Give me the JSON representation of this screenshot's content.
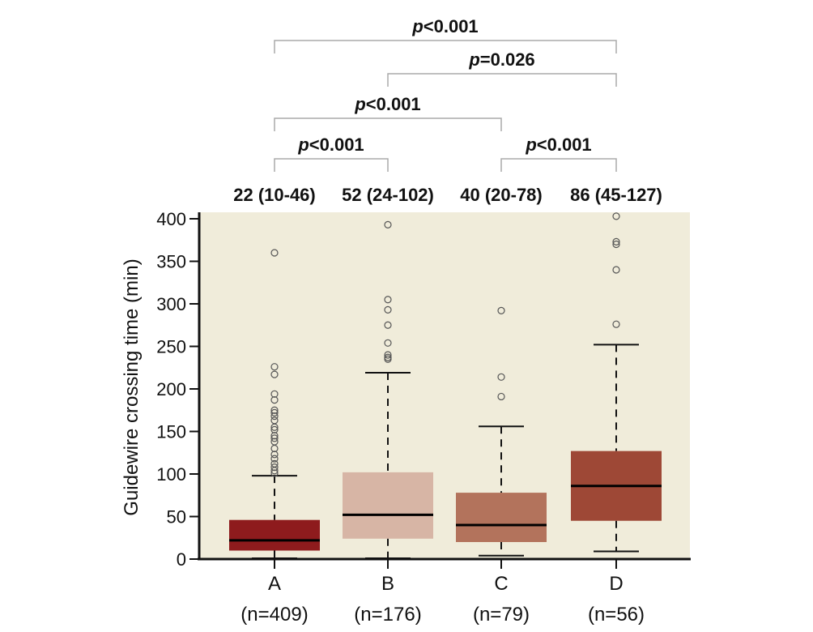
{
  "chart_data": {
    "type": "box",
    "ylabel": "Guidewire crossing time (min)",
    "ylim": [
      0,
      400
    ],
    "yticks": [
      0,
      50,
      100,
      150,
      200,
      250,
      300,
      350,
      400
    ],
    "grid": false,
    "background": "#f0ecda",
    "groups": [
      {
        "label": "A",
        "n_label": "(n=409)",
        "summary": "22 (10-46)",
        "color": "#8e1b1d",
        "median": 22,
        "q1": 10,
        "q3": 46,
        "whisker_low": 1,
        "whisker_high": 98,
        "outliers": [
          360,
          226,
          217,
          194,
          187,
          175,
          172,
          168,
          163,
          155,
          152,
          145,
          142,
          138,
          130,
          123,
          118,
          112,
          108,
          104,
          101
        ]
      },
      {
        "label": "B",
        "n_label": "(n=176)",
        "summary": "52 (24-102)",
        "color": "#d7b5a5",
        "median": 52,
        "q1": 24,
        "q3": 102,
        "whisker_low": 1,
        "whisker_high": 219,
        "outliers": [
          393,
          305,
          293,
          275,
          254,
          240,
          237,
          235
        ]
      },
      {
        "label": "C",
        "n_label": "(n=79)",
        "summary": "40 (20-78)",
        "color": "#b3735c",
        "median": 40,
        "q1": 20,
        "q3": 78,
        "whisker_low": 4,
        "whisker_high": 156,
        "outliers": [
          292,
          214,
          191
        ]
      },
      {
        "label": "D",
        "n_label": "(n=56)",
        "summary": "86 (45-127)",
        "color": "#9e4836",
        "median": 86,
        "q1": 45,
        "q3": 127,
        "whisker_low": 9,
        "whisker_high": 252,
        "outliers": [
          403,
          373,
          370,
          340,
          276
        ]
      }
    ],
    "comparisons": [
      {
        "from": 0,
        "to": 3,
        "p_prefix": "p",
        "p_value": "<0.001"
      },
      {
        "from": 1,
        "to": 3,
        "p_prefix": "p",
        "p_value": "=0.026"
      },
      {
        "from": 0,
        "to": 2,
        "p_prefix": "p",
        "p_value": "<0.001"
      },
      {
        "from": 0,
        "to": 1,
        "p_prefix": "p",
        "p_value": "<0.001"
      },
      {
        "from": 2,
        "to": 3,
        "p_prefix": "p",
        "p_value": "<0.001"
      }
    ]
  }
}
